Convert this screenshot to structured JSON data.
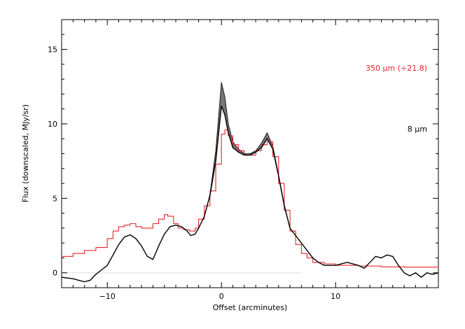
{
  "chart_data": {
    "type": "line",
    "title": "",
    "xlabel": "Offset (arcminutes)",
    "ylabel": "Flux (downscaled, MJy/sr)",
    "xlim": [
      -14,
      19
    ],
    "ylim": [
      -1,
      17
    ],
    "xticks": [
      -10,
      0,
      10
    ],
    "yticks": [
      0,
      5,
      10,
      15
    ],
    "xtick_labels": [
      "−10",
      "0",
      "10"
    ],
    "ytick_labels": [
      "0",
      "5",
      "10",
      "15"
    ],
    "grid": false,
    "legend_placement": "right",
    "series": [
      {
        "name": "350 µm (÷21.8)",
        "color": "#e8242a",
        "style": "steps",
        "x": [
          -14,
          -13,
          -12,
          -11,
          -10,
          -9.5,
          -9,
          -8.5,
          -8,
          -7.5,
          -7,
          -6.5,
          -6,
          -5.5,
          -5,
          -4.7,
          -4.2,
          -3.8,
          -3.3,
          -2.8,
          -2.3,
          -2,
          -1.5,
          -1,
          -0.5,
          0,
          0.3,
          0.6,
          1,
          1.5,
          2,
          2.5,
          3,
          3.5,
          4,
          4.5,
          5,
          5.5,
          6,
          6.5,
          7,
          7.5,
          8,
          9,
          10,
          12,
          14,
          16,
          19
        ],
        "y": [
          1.1,
          1.3,
          1.5,
          1.7,
          2.3,
          2.8,
          3.1,
          3.2,
          3.3,
          3.1,
          3.0,
          3.0,
          3.3,
          3.6,
          3.9,
          3.8,
          3.3,
          3.0,
          2.9,
          2.8,
          3.0,
          3.6,
          4.5,
          5.5,
          7.3,
          9.3,
          9.6,
          9.2,
          8.6,
          8.2,
          7.9,
          7.9,
          8.2,
          8.6,
          8.8,
          7.8,
          6.0,
          4.2,
          2.8,
          1.9,
          1.3,
          1.0,
          0.7,
          0.6,
          0.5,
          0.45,
          0.4,
          0.38,
          0.35
        ]
      },
      {
        "name": "8 µm",
        "color": "#000000",
        "style": "line",
        "band_color": "#777777",
        "x": [
          -14,
          -13,
          -12.5,
          -12,
          -11.5,
          -11,
          -10.5,
          -10,
          -9.5,
          -9,
          -8.5,
          -8,
          -7.5,
          -7,
          -6.5,
          -6,
          -5.5,
          -5,
          -4.5,
          -4,
          -3.5,
          -3,
          -2.7,
          -2.3,
          -2,
          -1.5,
          -1,
          -0.5,
          0,
          0.3,
          0.6,
          1,
          1.5,
          2,
          2.5,
          3,
          3.5,
          4,
          4.5,
          5,
          5.5,
          6,
          6.5,
          7,
          7.5,
          8,
          8.5,
          9,
          10,
          11,
          12,
          12.5,
          13,
          13.5,
          14,
          14.5,
          15,
          15.5,
          16,
          16.5,
          17,
          17.5,
          18,
          18.5,
          19
        ],
        "y": [
          -0.3,
          -0.4,
          -0.5,
          -0.6,
          -0.5,
          -0.1,
          0.2,
          0.5,
          1.2,
          1.9,
          2.4,
          2.55,
          2.3,
          1.8,
          1.1,
          0.9,
          1.8,
          2.6,
          3.1,
          3.2,
          3.1,
          2.8,
          2.5,
          2.6,
          3.0,
          3.8,
          5.2,
          7.5,
          11.2,
          10.6,
          9.4,
          8.4,
          8.1,
          7.9,
          7.9,
          8.1,
          8.4,
          9.0,
          8.3,
          6.5,
          4.5,
          3.0,
          2.5,
          2.0,
          1.5,
          1.0,
          0.7,
          0.5,
          0.5,
          0.7,
          0.5,
          0.3,
          0.7,
          1.1,
          1.0,
          1.2,
          1.1,
          0.5,
          0.0,
          -0.2,
          0.0,
          -0.3,
          0.0,
          -0.1,
          0.0
        ],
        "y_upper": [
          -0.3,
          -0.4,
          -0.5,
          -0.6,
          -0.5,
          -0.1,
          0.2,
          0.5,
          1.2,
          1.9,
          2.4,
          2.55,
          2.3,
          1.8,
          1.1,
          0.9,
          1.8,
          2.6,
          3.1,
          3.2,
          3.1,
          2.8,
          2.5,
          2.6,
          3.0,
          3.8,
          5.3,
          8.2,
          12.8,
          11.8,
          10.0,
          8.8,
          8.3,
          8.0,
          8.0,
          8.2,
          8.7,
          9.4,
          8.5,
          6.6,
          4.6,
          3.0,
          2.5,
          2.0,
          1.5,
          1.0,
          0.7,
          0.5,
          0.5,
          0.7,
          0.5,
          0.3,
          0.7,
          1.1,
          1.0,
          1.2,
          1.1,
          0.5,
          0.0,
          -0.2,
          0.0,
          -0.3,
          0.0,
          -0.1,
          0.0
        ]
      }
    ],
    "baseline": {
      "y": 0,
      "x_from": -14,
      "x_to": 7,
      "color": "#dddddd"
    },
    "legend": [
      {
        "text": "350 µm (÷21.8)",
        "color": "#e8242a"
      },
      {
        "text": "8 µm",
        "color": "#000000"
      }
    ]
  }
}
